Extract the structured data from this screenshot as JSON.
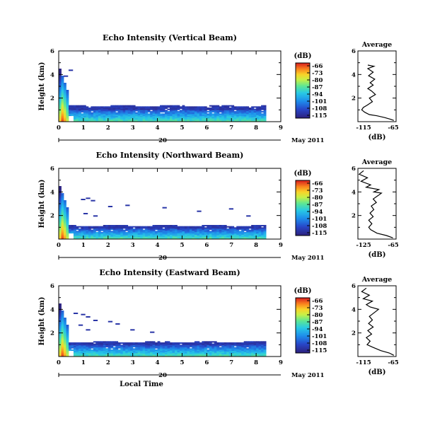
{
  "chart_data": [
    {
      "type": "heatmap",
      "title": "Echo Intensity (Vertical Beam)",
      "ylabel": "Height (km)",
      "x_ticks": [
        "0",
        "1",
        "2",
        "3",
        "4",
        "5",
        "6",
        "7",
        "8",
        "9"
      ],
      "y_ticks": [
        "2",
        "4",
        "6"
      ],
      "xlim": [
        0,
        9
      ],
      "ylim": [
        0,
        6
      ],
      "date_marker": "20",
      "date_label": "May 2011",
      "colorbar": {
        "label": "(dB)",
        "ticks": [
          "-66",
          "-73",
          "-80",
          "-87",
          "-94",
          "-101",
          "-108",
          "-115"
        ]
      },
      "band_top_km": 1.4,
      "profile": {
        "title": "Average",
        "xlabel": "(dB)",
        "x_ticks": [
          "-115",
          "-65"
        ],
        "y_ticks": [
          "2",
          "4",
          "6"
        ],
        "xlim": [
          -115,
          -65
        ],
        "ylim": [
          0,
          6
        ],
        "points": [
          [
            -68,
            0.1
          ],
          [
            -72,
            0.2
          ],
          [
            -80,
            0.35
          ],
          [
            -90,
            0.5
          ],
          [
            -100,
            0.6
          ],
          [
            -106,
            0.8
          ],
          [
            -110,
            1.0
          ],
          [
            -108,
            1.2
          ],
          [
            -103,
            1.4
          ],
          [
            -96,
            1.7
          ],
          [
            -100,
            2.0
          ],
          [
            -92,
            2.3
          ],
          [
            -97,
            2.6
          ],
          [
            -102,
            2.8
          ],
          [
            -95,
            3.1
          ],
          [
            -99,
            3.3
          ],
          [
            -93,
            3.6
          ],
          [
            -101,
            3.9
          ],
          [
            -95,
            4.2
          ],
          [
            -102,
            4.5
          ],
          [
            -94,
            4.7
          ],
          [
            -102,
            4.8
          ]
        ]
      }
    },
    {
      "type": "heatmap",
      "title": "Echo Intensity (Northward Beam)",
      "ylabel": "Height (km)",
      "x_ticks": [
        "0",
        "1",
        "2",
        "3",
        "4",
        "5",
        "6",
        "7",
        "8",
        "9"
      ],
      "y_ticks": [
        "2",
        "4",
        "6"
      ],
      "xlim": [
        0,
        9
      ],
      "ylim": [
        0,
        6
      ],
      "date_marker": "20",
      "date_label": "May 2011",
      "colorbar": {
        "label": "(dB)",
        "ticks": [
          "-66",
          "-73",
          "-80",
          "-87",
          "-94",
          "-101",
          "-108",
          "-115"
        ]
      },
      "band_top_km": 1.2,
      "profile": {
        "title": "Average",
        "xlabel": "(dB)",
        "x_ticks": [
          "-125",
          "-65"
        ],
        "y_ticks": [
          "2",
          "4",
          "6"
        ],
        "xlim": [
          -125,
          -65
        ],
        "ylim": [
          0,
          6
        ],
        "points": [
          [
            -70,
            0.1
          ],
          [
            -80,
            0.3
          ],
          [
            -95,
            0.5
          ],
          [
            -105,
            0.8
          ],
          [
            -108,
            1.0
          ],
          [
            -103,
            1.3
          ],
          [
            -108,
            1.6
          ],
          [
            -101,
            1.9
          ],
          [
            -106,
            2.2
          ],
          [
            -100,
            2.5
          ],
          [
            -104,
            2.8
          ],
          [
            -96,
            3.1
          ],
          [
            -101,
            3.4
          ],
          [
            -93,
            3.7
          ],
          [
            -88,
            3.9
          ],
          [
            -100,
            4.0
          ],
          [
            -92,
            4.2
          ],
          [
            -112,
            4.4
          ],
          [
            -105,
            4.6
          ],
          [
            -120,
            4.9
          ],
          [
            -110,
            5.2
          ],
          [
            -123,
            5.5
          ],
          [
            -116,
            5.8
          ]
        ]
      }
    },
    {
      "type": "heatmap",
      "title": "Echo Intensity (Eastward Beam)",
      "ylabel": "Height (km)",
      "xlabel": "Local Time",
      "x_ticks": [
        "0",
        "1",
        "2",
        "3",
        "4",
        "5",
        "6",
        "7",
        "8",
        "9"
      ],
      "y_ticks": [
        "2",
        "4",
        "6"
      ],
      "xlim": [
        0,
        9
      ],
      "ylim": [
        0,
        6
      ],
      "date_marker": "20",
      "date_label": "May 2011",
      "colorbar": {
        "label": "(dB)",
        "ticks": [
          "-66",
          "-73",
          "-80",
          "-87",
          "-94",
          "-101",
          "-108",
          "-115"
        ]
      },
      "band_top_km": 1.3,
      "profile": {
        "title": "Average",
        "xlabel": "(dB)",
        "x_ticks": [
          "-115",
          "-65"
        ],
        "y_ticks": [
          "2",
          "4",
          "6"
        ],
        "xlim": [
          -115,
          -65
        ],
        "ylim": [
          0,
          6
        ],
        "points": [
          [
            -68,
            0.1
          ],
          [
            -74,
            0.3
          ],
          [
            -85,
            0.5
          ],
          [
            -96,
            0.8
          ],
          [
            -103,
            1.0
          ],
          [
            -99,
            1.3
          ],
          [
            -104,
            1.6
          ],
          [
            -97,
            1.9
          ],
          [
            -102,
            2.2
          ],
          [
            -95,
            2.5
          ],
          [
            -101,
            2.8
          ],
          [
            -96,
            3.1
          ],
          [
            -100,
            3.4
          ],
          [
            -94,
            3.7
          ],
          [
            -88,
            4.0
          ],
          [
            -99,
            4.2
          ],
          [
            -104,
            4.4
          ],
          [
            -96,
            4.7
          ],
          [
            -108,
            4.9
          ],
          [
            -100,
            5.2
          ],
          [
            -110,
            5.5
          ],
          [
            -104,
            5.8
          ]
        ]
      }
    }
  ]
}
